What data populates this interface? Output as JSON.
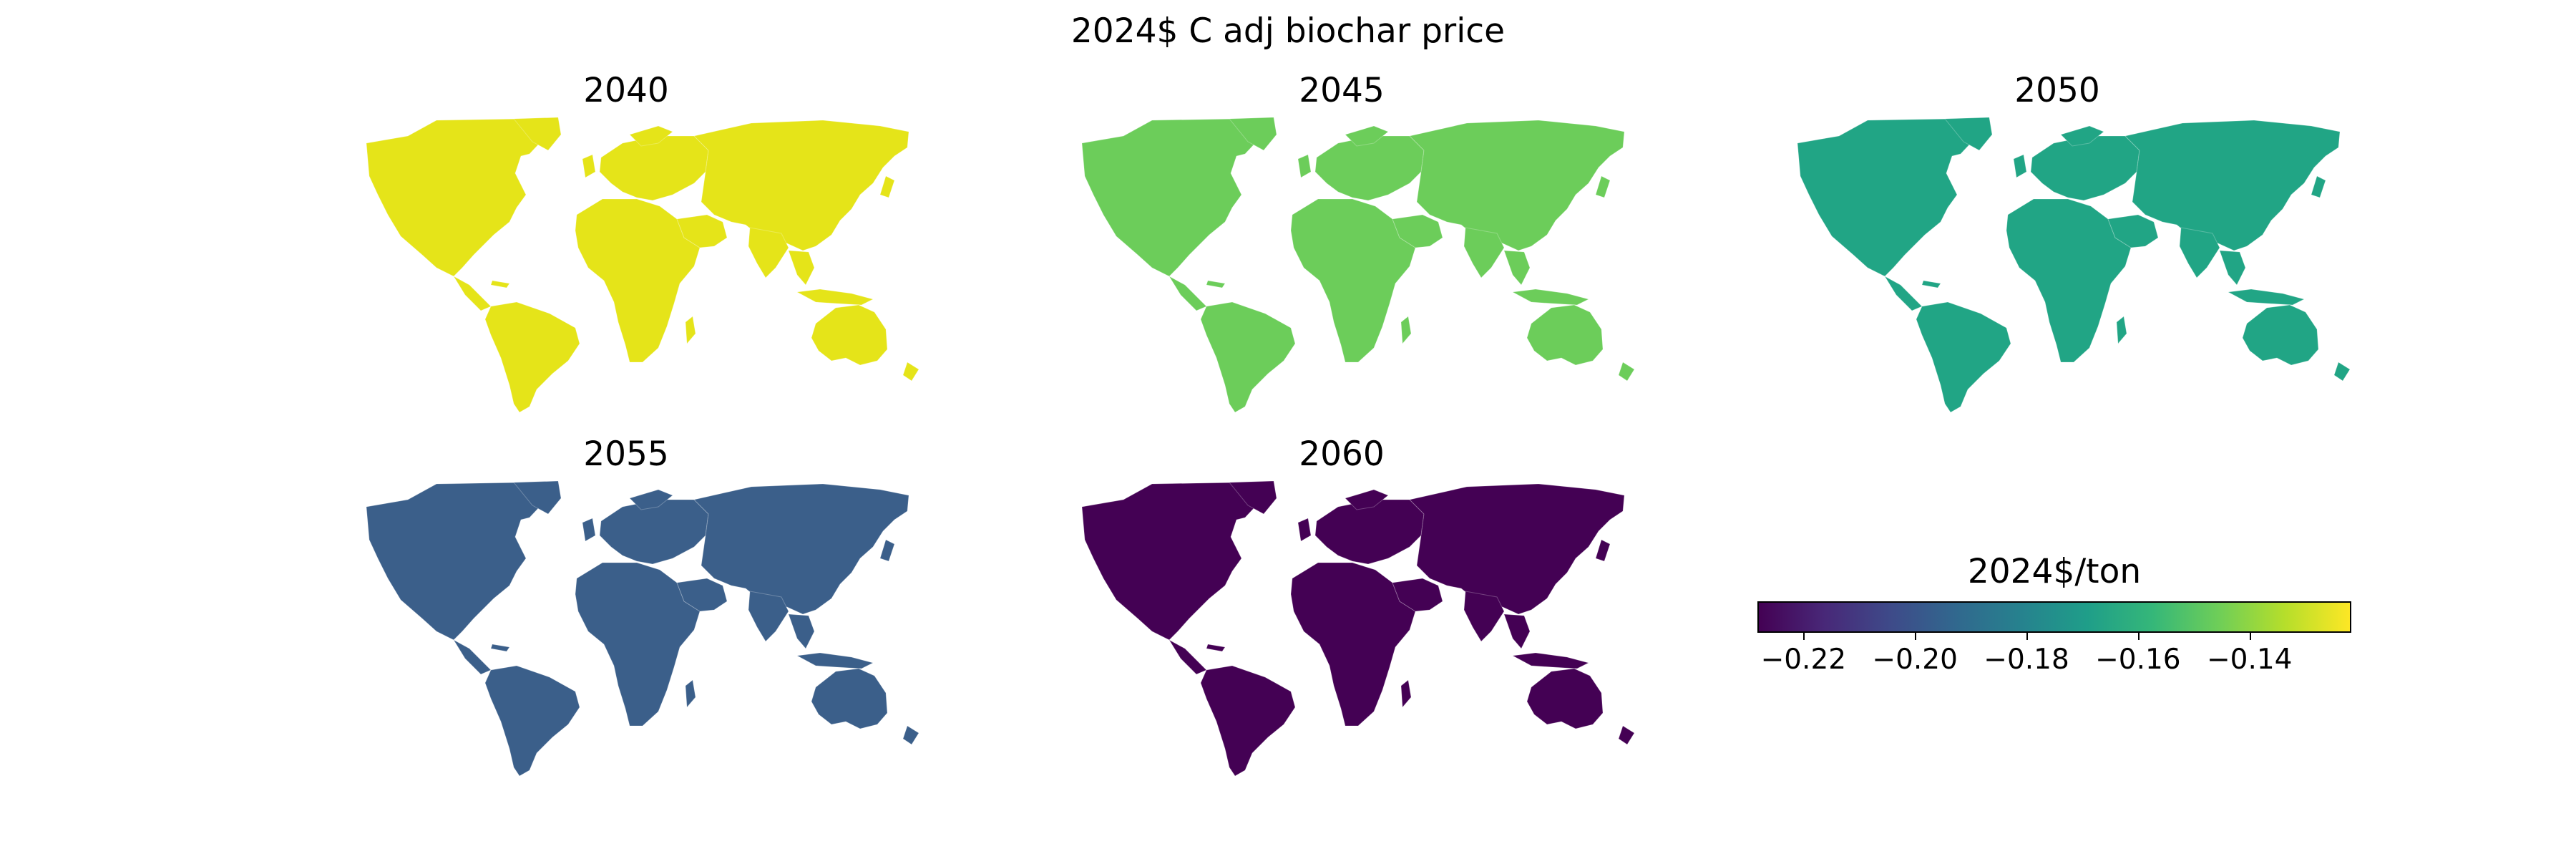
{
  "figure": {
    "title": "2024$ C adj biochar price"
  },
  "chart_data": {
    "type": "choropleth-map",
    "title": "2024$ C adj biochar price",
    "panels": [
      {
        "title": "2040",
        "value": -0.13,
        "color": "#e5e419"
      },
      {
        "title": "2045",
        "value": -0.155,
        "color": "#6ccd5a"
      },
      {
        "title": "2050",
        "value": -0.18,
        "color": "#21a585"
      },
      {
        "title": "2055",
        "value": -0.202,
        "color": "#3b5f8a"
      },
      {
        "title": "2060",
        "value": -0.228,
        "color": "#440154"
      }
    ],
    "colorbar": {
      "label": "2024$/ton",
      "colormap": "viridis",
      "range": [
        -0.228,
        -0.122
      ],
      "ticks": [
        -0.22,
        -0.2,
        -0.18,
        -0.16,
        -0.14
      ],
      "tick_labels": [
        "−0.22",
        "−0.20",
        "−0.18",
        "−0.16",
        "−0.14"
      ]
    }
  }
}
